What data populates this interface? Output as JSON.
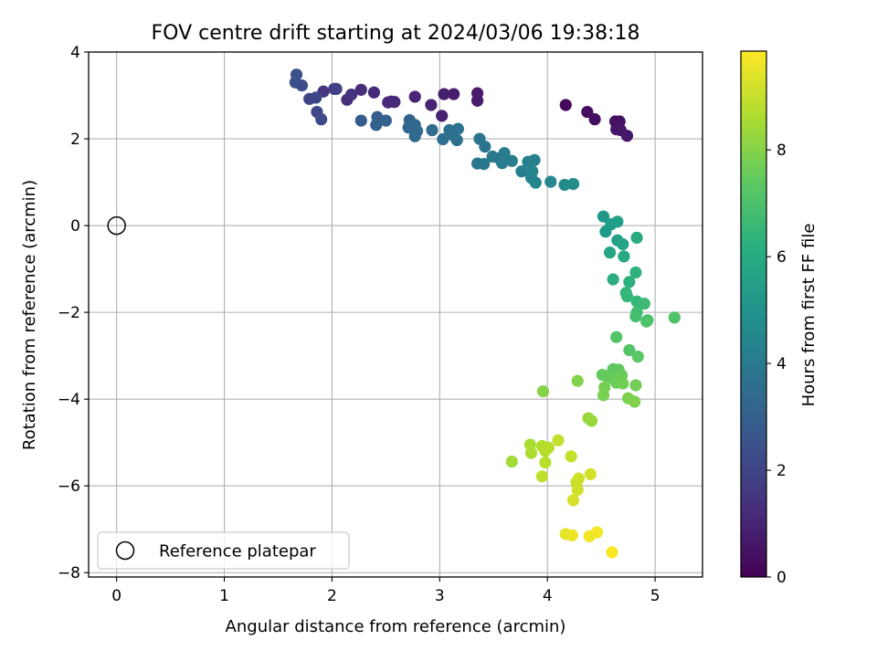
{
  "chart_data": {
    "type": "scatter",
    "title": "FOV centre drift starting at 2024/03/06 19:38:18",
    "xlabel": "Angular distance from reference (arcmin)",
    "ylabel": "Rotation from reference (arcmin)",
    "xlim": [
      -0.26,
      5.44
    ],
    "ylim": [
      -8.1,
      4.0
    ],
    "xticks": [
      0,
      1,
      2,
      3,
      4,
      5
    ],
    "yticks": [
      -8,
      -6,
      -4,
      -2,
      0,
      2,
      4
    ],
    "grid": true,
    "legend": {
      "placement": "lower-left",
      "entries": [
        "Reference platepar"
      ]
    },
    "colorbar": {
      "label": "Hours from first FF file",
      "range": [
        0,
        9.85
      ],
      "ticks": [
        0,
        2,
        4,
        6,
        8
      ],
      "colormap": "viridis"
    },
    "reference_point": {
      "x": 0,
      "y": 0,
      "label": "Reference platepar"
    },
    "points": [
      {
        "x": 4.17,
        "y": 2.78,
        "h": 0.2
      },
      {
        "x": 4.37,
        "y": 2.62,
        "h": 0.3
      },
      {
        "x": 4.44,
        "y": 2.45,
        "h": 0.4
      },
      {
        "x": 4.63,
        "y": 2.4,
        "h": 0.45
      },
      {
        "x": 4.67,
        "y": 2.4,
        "h": 0.5
      },
      {
        "x": 4.64,
        "y": 2.22,
        "h": 0.55
      },
      {
        "x": 4.68,
        "y": 2.2,
        "h": 0.6
      },
      {
        "x": 4.74,
        "y": 2.07,
        "h": 0.65
      },
      {
        "x": 3.35,
        "y": 3.05,
        "h": 0.7
      },
      {
        "x": 3.35,
        "y": 2.88,
        "h": 0.75
      },
      {
        "x": 3.13,
        "y": 3.03,
        "h": 0.8
      },
      {
        "x": 3.04,
        "y": 3.03,
        "h": 0.85
      },
      {
        "x": 3.02,
        "y": 2.53,
        "h": 0.9
      },
      {
        "x": 2.92,
        "y": 2.78,
        "h": 0.95
      },
      {
        "x": 2.77,
        "y": 2.97,
        "h": 1.0
      },
      {
        "x": 2.58,
        "y": 2.85,
        "h": 1.05
      },
      {
        "x": 2.52,
        "y": 2.84,
        "h": 1.1
      },
      {
        "x": 2.55,
        "y": 2.86,
        "h": 1.15
      },
      {
        "x": 2.39,
        "y": 3.07,
        "h": 1.2
      },
      {
        "x": 2.27,
        "y": 3.13,
        "h": 1.25
      },
      {
        "x": 2.14,
        "y": 2.9,
        "h": 1.35
      },
      {
        "x": 2.18,
        "y": 3.02,
        "h": 1.45
      },
      {
        "x": 1.92,
        "y": 3.09,
        "h": 1.5
      },
      {
        "x": 2.02,
        "y": 3.15,
        "h": 1.8
      },
      {
        "x": 2.04,
        "y": 3.15,
        "h": 1.9
      },
      {
        "x": 1.79,
        "y": 2.92,
        "h": 2.0
      },
      {
        "x": 1.85,
        "y": 2.95,
        "h": 2.05
      },
      {
        "x": 1.86,
        "y": 2.62,
        "h": 2.1
      },
      {
        "x": 1.9,
        "y": 2.45,
        "h": 2.2
      },
      {
        "x": 1.72,
        "y": 3.23,
        "h": 2.3
      },
      {
        "x": 1.66,
        "y": 3.3,
        "h": 2.4
      },
      {
        "x": 1.67,
        "y": 3.48,
        "h": 2.45
      },
      {
        "x": 2.27,
        "y": 2.42,
        "h": 2.8
      },
      {
        "x": 2.42,
        "y": 2.5,
        "h": 2.9
      },
      {
        "x": 2.41,
        "y": 2.32,
        "h": 3.0
      },
      {
        "x": 2.5,
        "y": 2.42,
        "h": 3.05
      },
      {
        "x": 2.72,
        "y": 2.43,
        "h": 3.1
      },
      {
        "x": 2.71,
        "y": 2.26,
        "h": 3.2
      },
      {
        "x": 2.77,
        "y": 2.32,
        "h": 3.3
      },
      {
        "x": 2.79,
        "y": 2.18,
        "h": 3.35
      },
      {
        "x": 2.77,
        "y": 2.06,
        "h": 3.4
      },
      {
        "x": 2.93,
        "y": 2.2,
        "h": 3.45
      },
      {
        "x": 3.03,
        "y": 1.99,
        "h": 3.5
      },
      {
        "x": 3.09,
        "y": 2.2,
        "h": 3.55
      },
      {
        "x": 3.13,
        "y": 2.07,
        "h": 3.6
      },
      {
        "x": 3.16,
        "y": 1.97,
        "h": 3.65
      },
      {
        "x": 3.17,
        "y": 2.23,
        "h": 3.7
      },
      {
        "x": 3.37,
        "y": 2.0,
        "h": 3.8
      },
      {
        "x": 3.42,
        "y": 1.82,
        "h": 3.85
      },
      {
        "x": 3.35,
        "y": 1.43,
        "h": 3.9
      },
      {
        "x": 3.41,
        "y": 1.42,
        "h": 3.95
      },
      {
        "x": 3.49,
        "y": 1.59,
        "h": 4.0
      },
      {
        "x": 3.55,
        "y": 1.55,
        "h": 4.05
      },
      {
        "x": 3.58,
        "y": 1.44,
        "h": 4.1
      },
      {
        "x": 3.6,
        "y": 1.67,
        "h": 4.15
      },
      {
        "x": 3.67,
        "y": 1.49,
        "h": 4.2
      },
      {
        "x": 3.76,
        "y": 1.25,
        "h": 4.25
      },
      {
        "x": 3.82,
        "y": 1.47,
        "h": 4.3
      },
      {
        "x": 3.88,
        "y": 1.51,
        "h": 4.35
      },
      {
        "x": 3.85,
        "y": 1.1,
        "h": 4.4
      },
      {
        "x": 3.86,
        "y": 1.25,
        "h": 4.45
      },
      {
        "x": 3.89,
        "y": 0.99,
        "h": 4.5
      },
      {
        "x": 4.03,
        "y": 1.01,
        "h": 4.6
      },
      {
        "x": 4.16,
        "y": 0.94,
        "h": 4.7
      },
      {
        "x": 4.24,
        "y": 0.96,
        "h": 4.8
      },
      {
        "x": 4.52,
        "y": 0.21,
        "h": 5.2
      },
      {
        "x": 4.54,
        "y": -0.14,
        "h": 5.3
      },
      {
        "x": 4.59,
        "y": 0.03,
        "h": 5.4
      },
      {
        "x": 4.65,
        "y": 0.09,
        "h": 5.5
      },
      {
        "x": 4.65,
        "y": -0.34,
        "h": 5.6
      },
      {
        "x": 4.7,
        "y": -0.43,
        "h": 5.7
      },
      {
        "x": 4.58,
        "y": -0.62,
        "h": 5.8
      },
      {
        "x": 4.71,
        "y": -0.71,
        "h": 5.9
      },
      {
        "x": 4.83,
        "y": -0.28,
        "h": 6.0
      },
      {
        "x": 4.61,
        "y": -1.24,
        "h": 6.1
      },
      {
        "x": 4.76,
        "y": -1.3,
        "h": 6.2
      },
      {
        "x": 4.82,
        "y": -1.08,
        "h": 6.3
      },
      {
        "x": 4.73,
        "y": -1.55,
        "h": 6.4
      },
      {
        "x": 4.74,
        "y": -1.63,
        "h": 6.5
      },
      {
        "x": 4.83,
        "y": -1.75,
        "h": 6.6
      },
      {
        "x": 4.9,
        "y": -1.8,
        "h": 6.7
      },
      {
        "x": 4.83,
        "y": -2.0,
        "h": 6.8
      },
      {
        "x": 4.82,
        "y": -2.09,
        "h": 6.9
      },
      {
        "x": 4.93,
        "y": -2.18,
        "h": 7.0
      },
      {
        "x": 4.92,
        "y": -2.21,
        "h": 7.05
      },
      {
        "x": 5.18,
        "y": -2.12,
        "h": 7.1
      },
      {
        "x": 4.64,
        "y": -2.57,
        "h": 7.15
      },
      {
        "x": 4.76,
        "y": -2.87,
        "h": 7.2
      },
      {
        "x": 4.84,
        "y": -3.02,
        "h": 7.3
      },
      {
        "x": 4.61,
        "y": -3.31,
        "h": 7.35
      },
      {
        "x": 4.66,
        "y": -3.32,
        "h": 7.4
      },
      {
        "x": 4.51,
        "y": -3.44,
        "h": 7.45
      },
      {
        "x": 4.55,
        "y": -3.47,
        "h": 7.5
      },
      {
        "x": 4.61,
        "y": -3.53,
        "h": 7.55
      },
      {
        "x": 4.69,
        "y": -3.45,
        "h": 7.6
      },
      {
        "x": 4.64,
        "y": -3.62,
        "h": 7.65
      },
      {
        "x": 4.7,
        "y": -3.64,
        "h": 7.7
      },
      {
        "x": 4.82,
        "y": -3.68,
        "h": 7.75
      },
      {
        "x": 4.53,
        "y": -3.73,
        "h": 7.8
      },
      {
        "x": 4.52,
        "y": -3.91,
        "h": 7.85
      },
      {
        "x": 4.75,
        "y": -3.98,
        "h": 7.9
      },
      {
        "x": 4.81,
        "y": -4.06,
        "h": 7.95
      },
      {
        "x": 4.28,
        "y": -3.58,
        "h": 8.0
      },
      {
        "x": 3.96,
        "y": -3.82,
        "h": 8.05
      },
      {
        "x": 4.38,
        "y": -4.44,
        "h": 8.3
      },
      {
        "x": 4.41,
        "y": -4.5,
        "h": 8.35
      },
      {
        "x": 3.67,
        "y": -5.44,
        "h": 8.5
      },
      {
        "x": 3.84,
        "y": -5.05,
        "h": 8.6
      },
      {
        "x": 3.85,
        "y": -5.24,
        "h": 8.65
      },
      {
        "x": 3.95,
        "y": -5.08,
        "h": 8.7
      },
      {
        "x": 3.98,
        "y": -5.19,
        "h": 8.75
      },
      {
        "x": 4.01,
        "y": -5.12,
        "h": 8.8
      },
      {
        "x": 3.98,
        "y": -5.46,
        "h": 8.85
      },
      {
        "x": 3.95,
        "y": -5.78,
        "h": 8.9
      },
      {
        "x": 4.1,
        "y": -4.95,
        "h": 8.95
      },
      {
        "x": 4.22,
        "y": -5.32,
        "h": 9.0
      },
      {
        "x": 4.27,
        "y": -5.92,
        "h": 9.05
      },
      {
        "x": 4.29,
        "y": -5.83,
        "h": 9.1
      },
      {
        "x": 4.28,
        "y": -6.09,
        "h": 9.15
      },
      {
        "x": 4.4,
        "y": -5.73,
        "h": 9.2
      },
      {
        "x": 4.24,
        "y": -6.33,
        "h": 9.25
      },
      {
        "x": 4.17,
        "y": -7.11,
        "h": 9.5
      },
      {
        "x": 4.23,
        "y": -7.14,
        "h": 9.6
      },
      {
        "x": 4.39,
        "y": -7.16,
        "h": 9.65
      },
      {
        "x": 4.46,
        "y": -7.07,
        "h": 9.7
      },
      {
        "x": 4.6,
        "y": -7.53,
        "h": 9.8
      }
    ]
  }
}
